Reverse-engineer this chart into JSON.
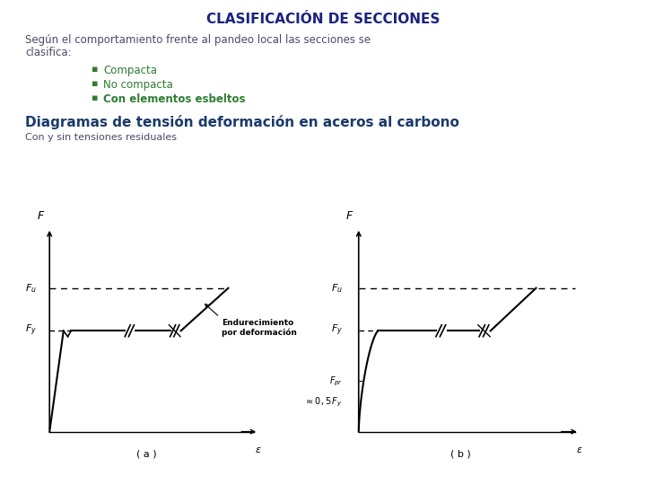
{
  "title": "CLASIFICACIÓN DE SECCIONES",
  "title_color": "#1a237e",
  "title_fontsize": 11,
  "body_text1": "Según el comportamiento frente al pandeo local las secciones se",
  "body_text2": "clasifica:",
  "body_color": "#4a4a6a",
  "body_fontsize": 8.5,
  "bullets": [
    "Compacta",
    "No compacta",
    "Con elementos esbeltos"
  ],
  "bullet_color": "#2e7d32",
  "bullet_fontsize": 8.5,
  "subtitle": "Diagramas de tensión deformación en aceros al carbono",
  "subtitle_color": "#1a3a6a",
  "subtitle_fontsize": 11,
  "caption": "Con y sin tensiones residuales",
  "caption_color": "#4a4a6a",
  "caption_fontsize": 8,
  "label_a": "( a )",
  "label_b": "( b )",
  "annotation_line1": "Endurecimiento",
  "annotation_line2": "por deformación",
  "background_color": "#ffffff"
}
